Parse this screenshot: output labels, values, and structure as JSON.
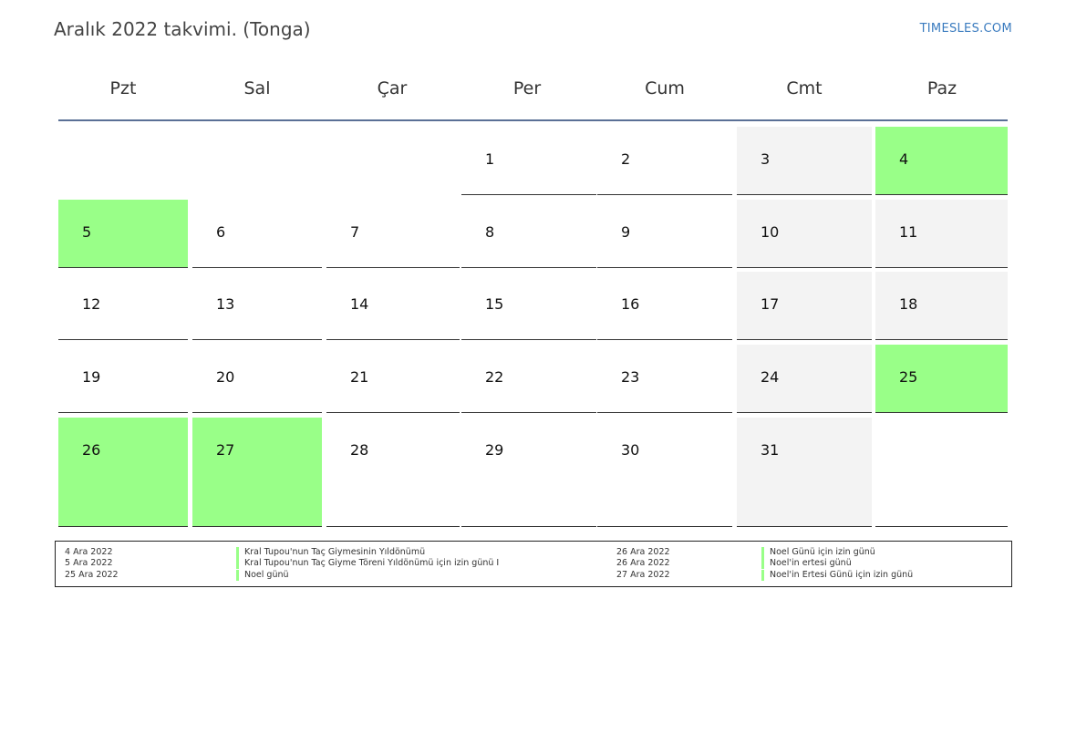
{
  "header": {
    "title": "Aralık 2022 takvimi. (Tonga)",
    "site": "TIMESLES.COM"
  },
  "weekdays": [
    "Pzt",
    "Sal",
    "Çar",
    "Per",
    "Cum",
    "Cmt",
    "Paz"
  ],
  "weeks": [
    [
      {
        "d": "",
        "t": "empty"
      },
      {
        "d": "",
        "t": "empty"
      },
      {
        "d": "",
        "t": "empty"
      },
      {
        "d": "1",
        "t": "normal"
      },
      {
        "d": "2",
        "t": "normal"
      },
      {
        "d": "3",
        "t": "weekend"
      },
      {
        "d": "4",
        "t": "holiday"
      }
    ],
    [
      {
        "d": "5",
        "t": "holiday"
      },
      {
        "d": "6",
        "t": "normal"
      },
      {
        "d": "7",
        "t": "normal"
      },
      {
        "d": "8",
        "t": "normal"
      },
      {
        "d": "9",
        "t": "normal"
      },
      {
        "d": "10",
        "t": "weekend"
      },
      {
        "d": "11",
        "t": "weekend"
      }
    ],
    [
      {
        "d": "12",
        "t": "normal"
      },
      {
        "d": "13",
        "t": "normal"
      },
      {
        "d": "14",
        "t": "normal"
      },
      {
        "d": "15",
        "t": "normal"
      },
      {
        "d": "16",
        "t": "normal"
      },
      {
        "d": "17",
        "t": "weekend"
      },
      {
        "d": "18",
        "t": "weekend"
      }
    ],
    [
      {
        "d": "19",
        "t": "normal"
      },
      {
        "d": "20",
        "t": "normal"
      },
      {
        "d": "21",
        "t": "normal"
      },
      {
        "d": "22",
        "t": "normal"
      },
      {
        "d": "23",
        "t": "normal"
      },
      {
        "d": "24",
        "t": "weekend"
      },
      {
        "d": "25",
        "t": "holiday"
      }
    ],
    [
      {
        "d": "26",
        "t": "holiday"
      },
      {
        "d": "27",
        "t": "holiday"
      },
      {
        "d": "28",
        "t": "normal"
      },
      {
        "d": "29",
        "t": "normal"
      },
      {
        "d": "30",
        "t": "normal"
      },
      {
        "d": "31",
        "t": "weekend"
      },
      {
        "d": "",
        "t": "normal"
      }
    ]
  ],
  "holidays": [
    {
      "date": "4 Ara 2022",
      "name": "Kral Tupou'nun Taç Giymesinin Yıldönümü"
    },
    {
      "date": "5 Ara 2022",
      "name": "Kral Tupou'nun Taç Giyme Töreni Yıldönümü için izin günü I"
    },
    {
      "date": "25 Ara 2022",
      "name": "Noel günü"
    },
    {
      "date": "26 Ara 2022",
      "name": "Noel Günü için izin günü"
    },
    {
      "date": "26 Ara 2022",
      "name": "Noel'in ertesi günü"
    },
    {
      "date": "27 Ara 2022",
      "name": "Noel'in Ertesi Günü için izin günü"
    }
  ],
  "colors": {
    "holiday": "#99ff88",
    "weekend": "#f3f3f3",
    "header_rule": "#5a7096",
    "link": "#3a7bbf"
  }
}
